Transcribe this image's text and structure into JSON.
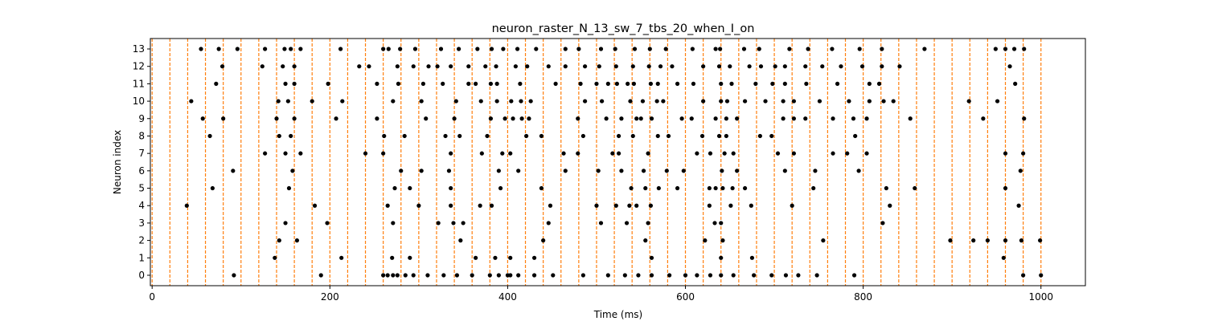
{
  "chart_data": {
    "type": "scatter",
    "title": "neuron_raster_N_13_sw_7_tbs_20_when_I_on",
    "xlabel": "Time (ms)",
    "ylabel": "Neuron index",
    "xlim": [
      -2,
      1050
    ],
    "ylim": [
      -0.6,
      13.6
    ],
    "x_ticks": [
      0,
      200,
      400,
      600,
      800,
      1000
    ],
    "y_ticks": [
      0,
      1,
      2,
      3,
      4,
      5,
      6,
      7,
      8,
      9,
      10,
      11,
      12,
      13
    ],
    "grid": false,
    "legend": "none",
    "marker_color": "#000000",
    "vline_color": "#ff7f0e",
    "vlines": [
      0,
      20,
      40,
      60,
      80,
      100,
      120,
      140,
      160,
      180,
      200,
      220,
      240,
      260,
      280,
      300,
      320,
      340,
      360,
      380,
      400,
      420,
      440,
      460,
      480,
      500,
      520,
      540,
      560,
      580,
      600,
      620,
      640,
      660,
      680,
      700,
      720,
      740,
      760,
      780,
      800,
      820,
      840,
      860,
      880,
      900,
      920,
      940,
      960,
      980,
      1000
    ],
    "spikes": [
      {
        "neuron": 0,
        "times": [
          92,
          190,
          260,
          265,
          271,
          276,
          285,
          294,
          310,
          328,
          343,
          360,
          380,
          390,
          400,
          403,
          412,
          430,
          451,
          485,
          513,
          532,
          547,
          562,
          582,
          600,
          613,
          628,
          640,
          654,
          677,
          697,
          713,
          727,
          748,
          790,
          980,
          1000
        ]
      },
      {
        "neuron": 1,
        "times": [
          138,
          213,
          270,
          290,
          364,
          386,
          403,
          430,
          562,
          640,
          675,
          958
        ]
      },
      {
        "neuron": 2,
        "times": [
          143,
          163,
          347,
          440,
          555,
          622,
          642,
          755,
          898,
          924,
          940,
          960,
          978,
          999
        ]
      },
      {
        "neuron": 3,
        "times": [
          150,
          197,
          271,
          322,
          339,
          350,
          446,
          505,
          534,
          558,
          633,
          640,
          822
        ]
      },
      {
        "neuron": 4,
        "times": [
          39,
          183,
          265,
          300,
          336,
          369,
          382,
          448,
          500,
          522,
          537,
          545,
          561,
          627,
          651,
          674,
          720,
          830,
          975
        ]
      },
      {
        "neuron": 5,
        "times": [
          68,
          154,
          273,
          290,
          336,
          392,
          438,
          539,
          555,
          570,
          591,
          627,
          634,
          642,
          653,
          667,
          744,
          826,
          858,
          960
        ]
      },
      {
        "neuron": 6,
        "times": [
          91,
          158,
          280,
          303,
          334,
          390,
          412,
          465,
          502,
          528,
          553,
          579,
          598,
          641,
          658,
          712,
          746,
          795,
          977
        ]
      },
      {
        "neuron": 7,
        "times": [
          127,
          150,
          167,
          240,
          260,
          336,
          371,
          394,
          403,
          463,
          479,
          518,
          525,
          558,
          613,
          628,
          644,
          654,
          704,
          722,
          766,
          782,
          804,
          960,
          980
        ]
      },
      {
        "neuron": 8,
        "times": [
          65,
          143,
          156,
          261,
          284,
          330,
          346,
          377,
          421,
          438,
          485,
          525,
          541,
          569,
          581,
          619,
          638,
          646,
          684,
          697,
          791
        ]
      },
      {
        "neuron": 9,
        "times": [
          57,
          80,
          140,
          160,
          207,
          253,
          308,
          340,
          381,
          397,
          406,
          416,
          424,
          479,
          511,
          528,
          545,
          550,
          562,
          596,
          607,
          634,
          646,
          658,
          710,
          722,
          735,
          766,
          789,
          804,
          853,
          935,
          981
        ]
      },
      {
        "neuron": 10,
        "times": [
          44,
          142,
          153,
          180,
          214,
          271,
          303,
          342,
          370,
          388,
          404,
          415,
          426,
          487,
          506,
          538,
          552,
          568,
          575,
          620,
          640,
          647,
          667,
          690,
          710,
          722,
          751,
          784,
          807,
          823,
          834,
          919,
          951
        ]
      },
      {
        "neuron": 11,
        "times": [
          72,
          150,
          160,
          198,
          253,
          277,
          305,
          327,
          356,
          364,
          381,
          388,
          414,
          454,
          482,
          500,
          513,
          523,
          535,
          542,
          561,
          569,
          591,
          609,
          640,
          652,
          679,
          698,
          712,
          736,
          771,
          807,
          818,
          971
        ]
      },
      {
        "neuron": 12,
        "times": [
          79,
          124,
          147,
          160,
          233,
          244,
          276,
          294,
          311,
          321,
          336,
          356,
          375,
          387,
          409,
          422,
          446,
          465,
          487,
          503,
          522,
          541,
          559,
          572,
          585,
          620,
          638,
          650,
          672,
          685,
          701,
          712,
          735,
          754,
          775,
          799,
          821,
          841,
          965
        ]
      },
      {
        "neuron": 13,
        "times": [
          55,
          75,
          96,
          127,
          149,
          156,
          167,
          212,
          260,
          266,
          279,
          296,
          325,
          345,
          366,
          382,
          395,
          411,
          432,
          465,
          480,
          505,
          521,
          543,
          560,
          578,
          608,
          634,
          639,
          666,
          683,
          717,
          738,
          765,
          796,
          821,
          869,
          949,
          960,
          970,
          981
        ]
      }
    ]
  }
}
